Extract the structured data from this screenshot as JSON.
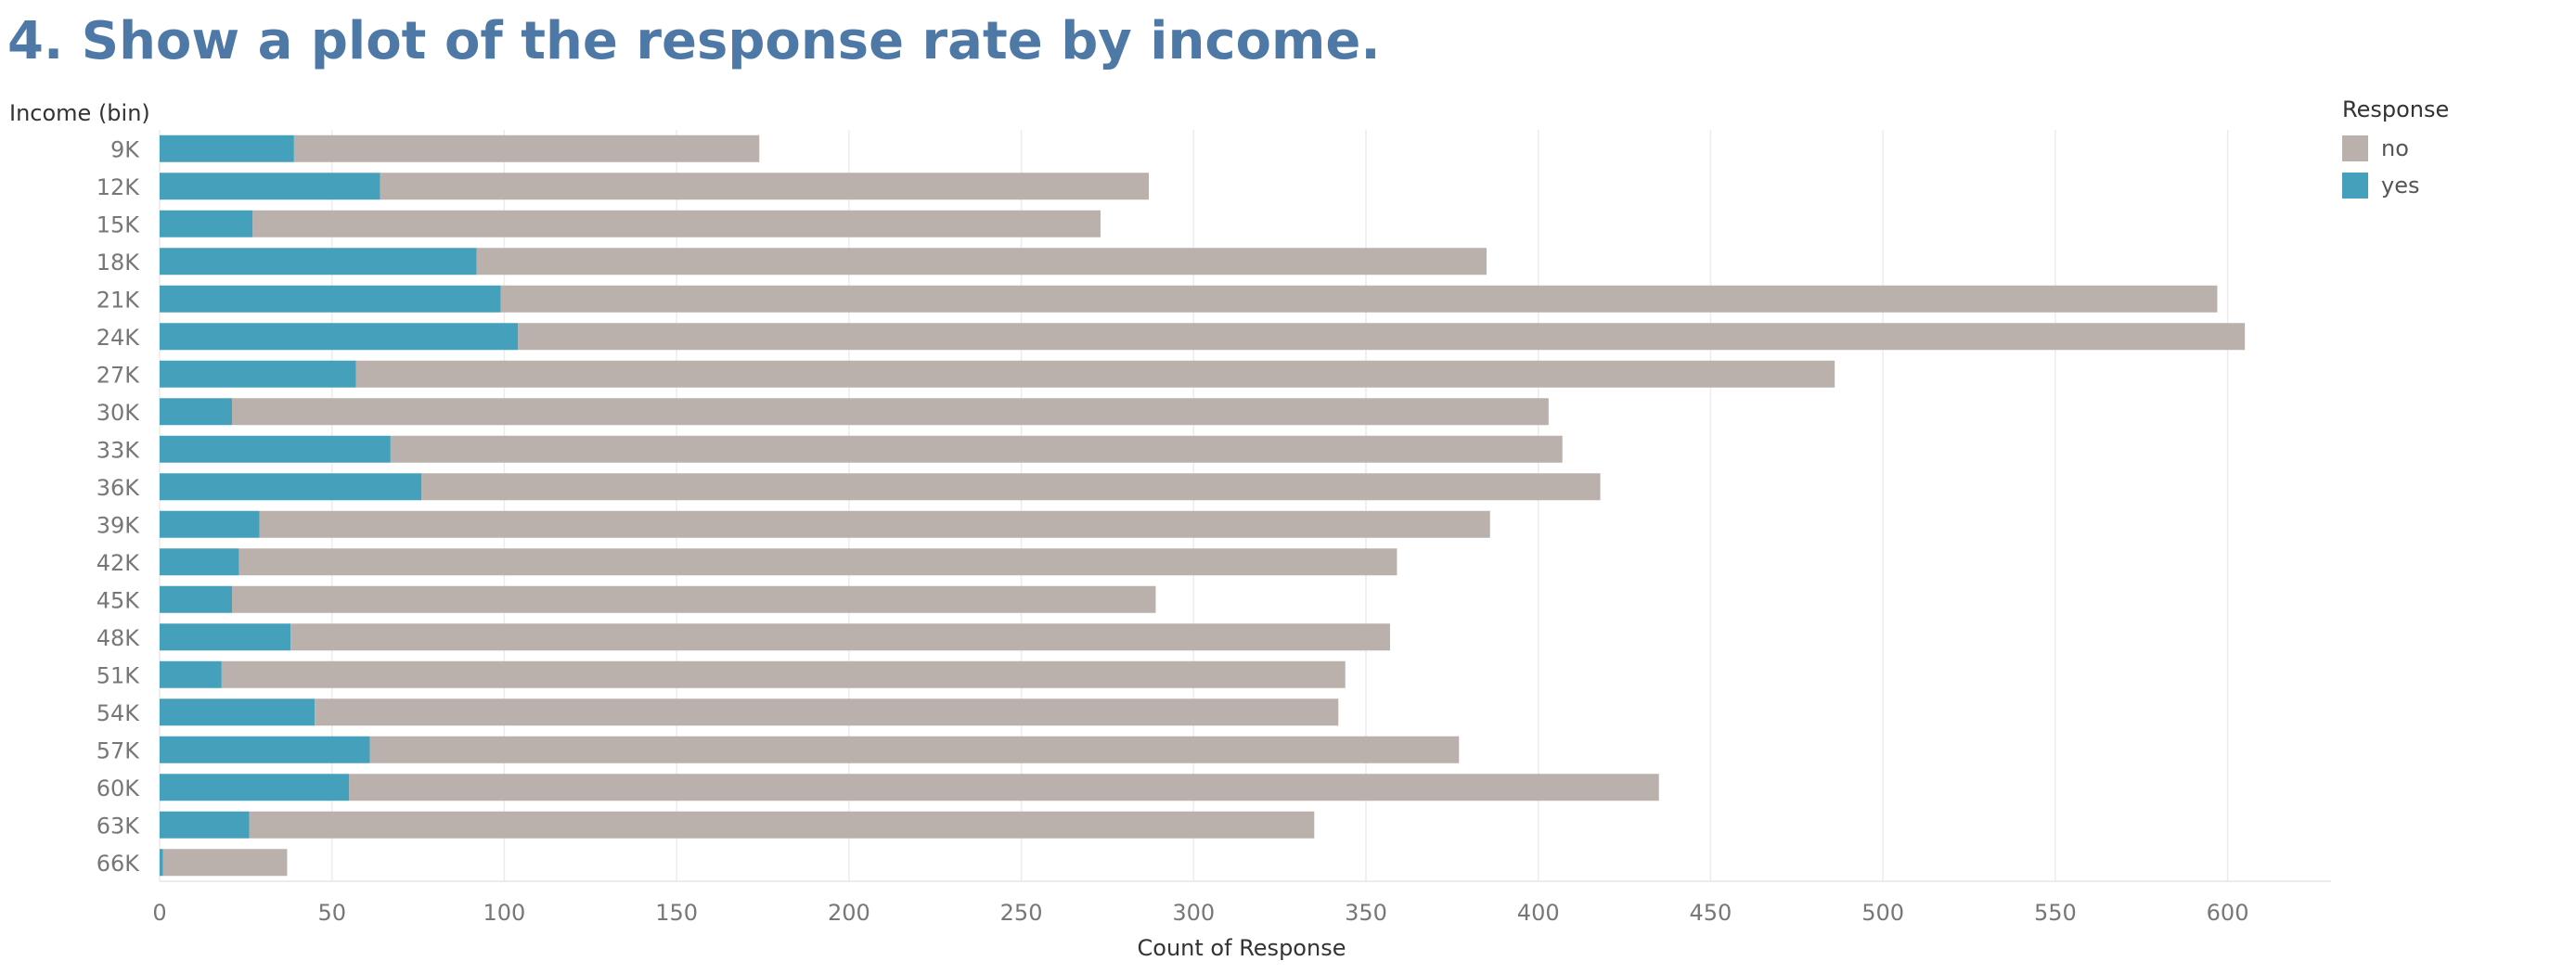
{
  "page": {
    "title": "4. Show a plot of the response rate by income."
  },
  "chart_data": {
    "type": "bar",
    "orientation": "horizontal",
    "stacked": true,
    "categories": [
      "9K",
      "12K",
      "15K",
      "18K",
      "21K",
      "24K",
      "27K",
      "30K",
      "33K",
      "36K",
      "39K",
      "42K",
      "45K",
      "48K",
      "51K",
      "54K",
      "57K",
      "60K",
      "63K",
      "66K"
    ],
    "series": [
      {
        "name": "yes",
        "color": "#45a0bb",
        "values": [
          39,
          64,
          27,
          92,
          99,
          104,
          57,
          21,
          67,
          76,
          29,
          23,
          21,
          38,
          18,
          45,
          61,
          55,
          26,
          1
        ]
      },
      {
        "name": "no",
        "color": "#bab0ac",
        "values": [
          135,
          223,
          246,
          293,
          498,
          501,
          429,
          382,
          340,
          342,
          357,
          336,
          268,
          319,
          326,
          297,
          316,
          380,
          309,
          36
        ]
      }
    ],
    "xlabel": "Count of Response",
    "ylabel": "Income (bin)",
    "xlim": [
      0,
      630
    ],
    "xticks": [
      0,
      50,
      100,
      150,
      200,
      250,
      300,
      350,
      400,
      450,
      500,
      550,
      600
    ],
    "grid": {
      "x": true,
      "y": false
    },
    "legend": {
      "title": "Response",
      "placement": "top-right",
      "items": [
        "no",
        "yes"
      ]
    }
  }
}
